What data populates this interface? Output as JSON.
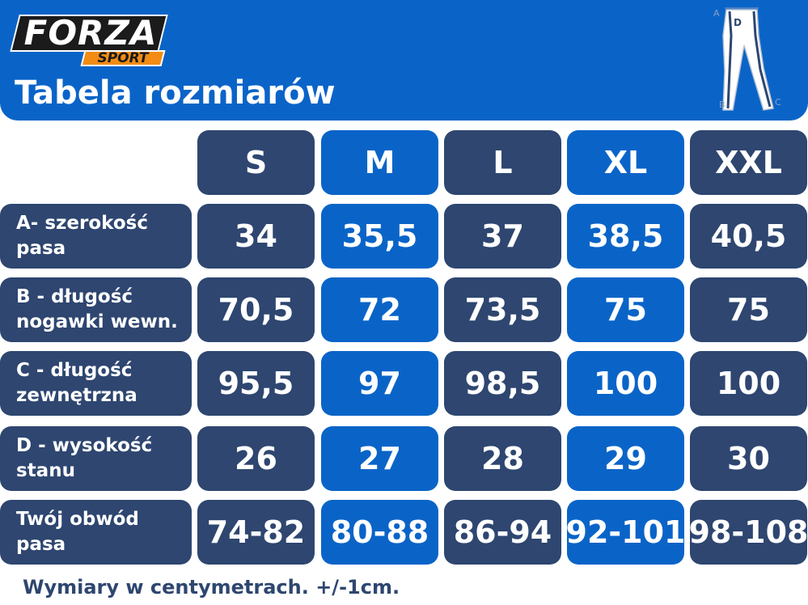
{
  "brand": {
    "name": "FORZA",
    "sub": "SPORT"
  },
  "title": "Tabela rozmiarów",
  "diagram_labels": {
    "a": "A",
    "b": "B",
    "c": "C",
    "d": "D"
  },
  "sizes": [
    "S",
    "M",
    "L",
    "XL",
    "XXL"
  ],
  "rows": [
    {
      "label": "A- szerokość pasa",
      "values": [
        "34",
        "35,5",
        "37",
        "38,5",
        "40,5"
      ]
    },
    {
      "label": "B - długość nogawki wewn.",
      "values": [
        "70,5",
        "72",
        "73,5",
        "75",
        "75"
      ]
    },
    {
      "label": "C - długość zewnętrzna",
      "values": [
        "95,5",
        "97",
        "98,5",
        "100",
        "100"
      ]
    },
    {
      "label": "D - wysokość stanu",
      "values": [
        "26",
        "27",
        "28",
        "29",
        "30"
      ]
    },
    {
      "label": "Twój obwód pasa",
      "values": [
        "74-82",
        "80-88",
        "86-94",
        "92-101",
        "98-108"
      ]
    }
  ],
  "footer": "Wymiary w centymetrach. +/-1cm.",
  "colors": {
    "header_blue": "#0a64c8",
    "cell_dark": "#2e4670",
    "cell_blue": "#0a64c8",
    "logo_orange": "#f28c14"
  }
}
